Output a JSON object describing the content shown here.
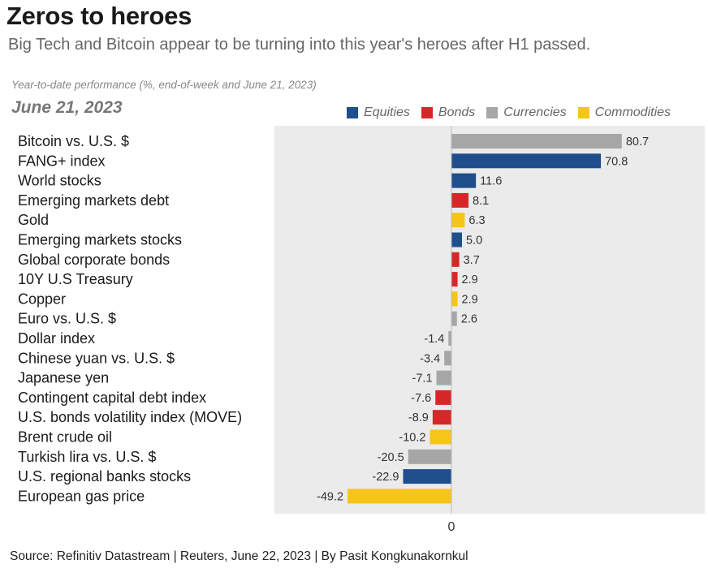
{
  "title": "Zeros to heroes",
  "subtitle": "Big Tech and Bitcoin appear to be turning into this year's heroes after H1 passed.",
  "note": "Year-to-date performance (%, end-of-week and June 21, 2023)",
  "date_label": "June 21, 2023",
  "source": "Source: Refinitiv Datastream | Reuters, June 22, 2023 | By Pasit Kongkunakornkul",
  "colors": {
    "Equities": "#1f4e8c",
    "Bonds": "#d62728",
    "Currencies": "#a6a6a6",
    "Commodities": "#f5c518",
    "plot_background": "#ebebeb"
  },
  "chart_data": {
    "type": "bar",
    "orientation": "horizontal",
    "title": "Zeros to heroes",
    "subtitle": "Big Tech and Bitcoin appear to be turning into this year's heroes after H1 passed.",
    "xlabel": "",
    "ylabel": "",
    "xlim": [
      -60,
      90
    ],
    "x_ticks": [
      0
    ],
    "grid": false,
    "legend": {
      "placement": "top-right",
      "entries": [
        "Equities",
        "Bonds",
        "Currencies",
        "Commodities"
      ]
    },
    "categories": [
      "Bitcoin vs. U.S. $",
      "FANG+ index",
      "World stocks",
      "Emerging markets debt",
      "Gold",
      "Emerging markets stocks",
      "Global corporate bonds",
      "10Y U.S Treasury",
      "Copper",
      "Euro vs. U.S. $",
      "Dollar index",
      "Chinese yuan vs. U.S. $",
      "Japanese yen",
      "Contingent capital debt index",
      "U.S. bonds volatility index (MOVE)",
      "Brent crude oil",
      "Turkish lira vs. U.S. $",
      "U.S. regional banks stocks",
      "European gas price"
    ],
    "values": [
      80.7,
      70.8,
      11.6,
      8.1,
      6.3,
      5.0,
      3.7,
      2.9,
      2.9,
      2.6,
      -1.4,
      -3.4,
      -7.1,
      -7.6,
      -8.9,
      -10.2,
      -20.5,
      -22.9,
      -49.2
    ],
    "value_labels": [
      "80.7",
      "70.8",
      "11.6",
      "8.1",
      "6.3",
      "5.0",
      "3.7",
      "2.9",
      "2.9",
      "2.6",
      "-1.4",
      "-3.4",
      "-7.1",
      "-7.6",
      "-8.9",
      "-10.2",
      "-20.5",
      "-22.9",
      "-49.2"
    ],
    "asset_class": [
      "Currencies",
      "Equities",
      "Equities",
      "Bonds",
      "Commodities",
      "Equities",
      "Bonds",
      "Bonds",
      "Commodities",
      "Currencies",
      "Currencies",
      "Currencies",
      "Currencies",
      "Bonds",
      "Bonds",
      "Commodities",
      "Currencies",
      "Equities",
      "Commodities"
    ],
    "zero_label": "0"
  }
}
